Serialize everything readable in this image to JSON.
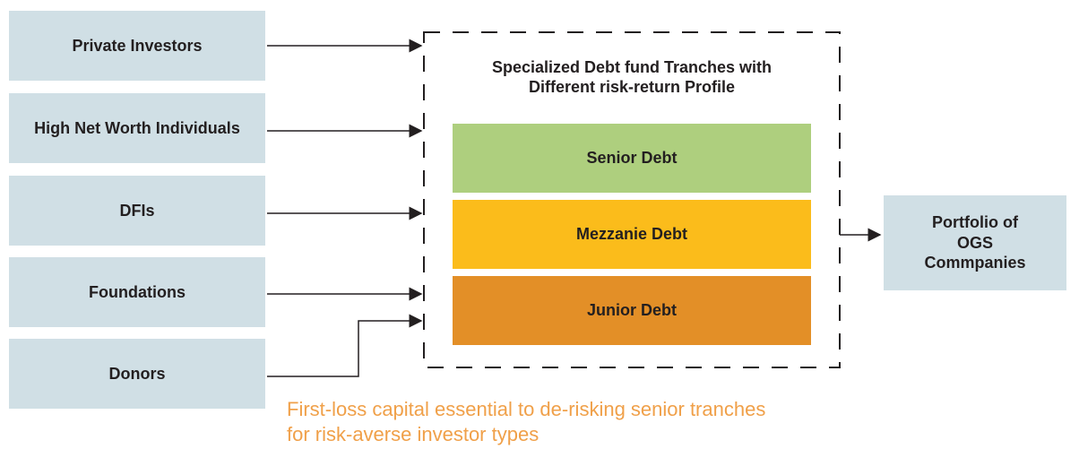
{
  "sources": [
    {
      "label": "Private Investors"
    },
    {
      "label": "High Net Worth Individuals"
    },
    {
      "label": "DFIs"
    },
    {
      "label": "Foundations"
    },
    {
      "label": "Donors"
    }
  ],
  "fund": {
    "title": "Specialized Debt fund Tranches with Different risk-return Profile",
    "tranches": [
      {
        "label": "Senior Debt",
        "color": "#aecf7e"
      },
      {
        "label": "Mezzanie Debt",
        "color": "#fbbc1b"
      },
      {
        "label": "Junior Debt",
        "color": "#e38f27"
      }
    ]
  },
  "target": {
    "label": "Portfolio of OGS Commpanies"
  },
  "note": "First-loss capital essential to de-risking senior tranches for risk-averse investor types"
}
